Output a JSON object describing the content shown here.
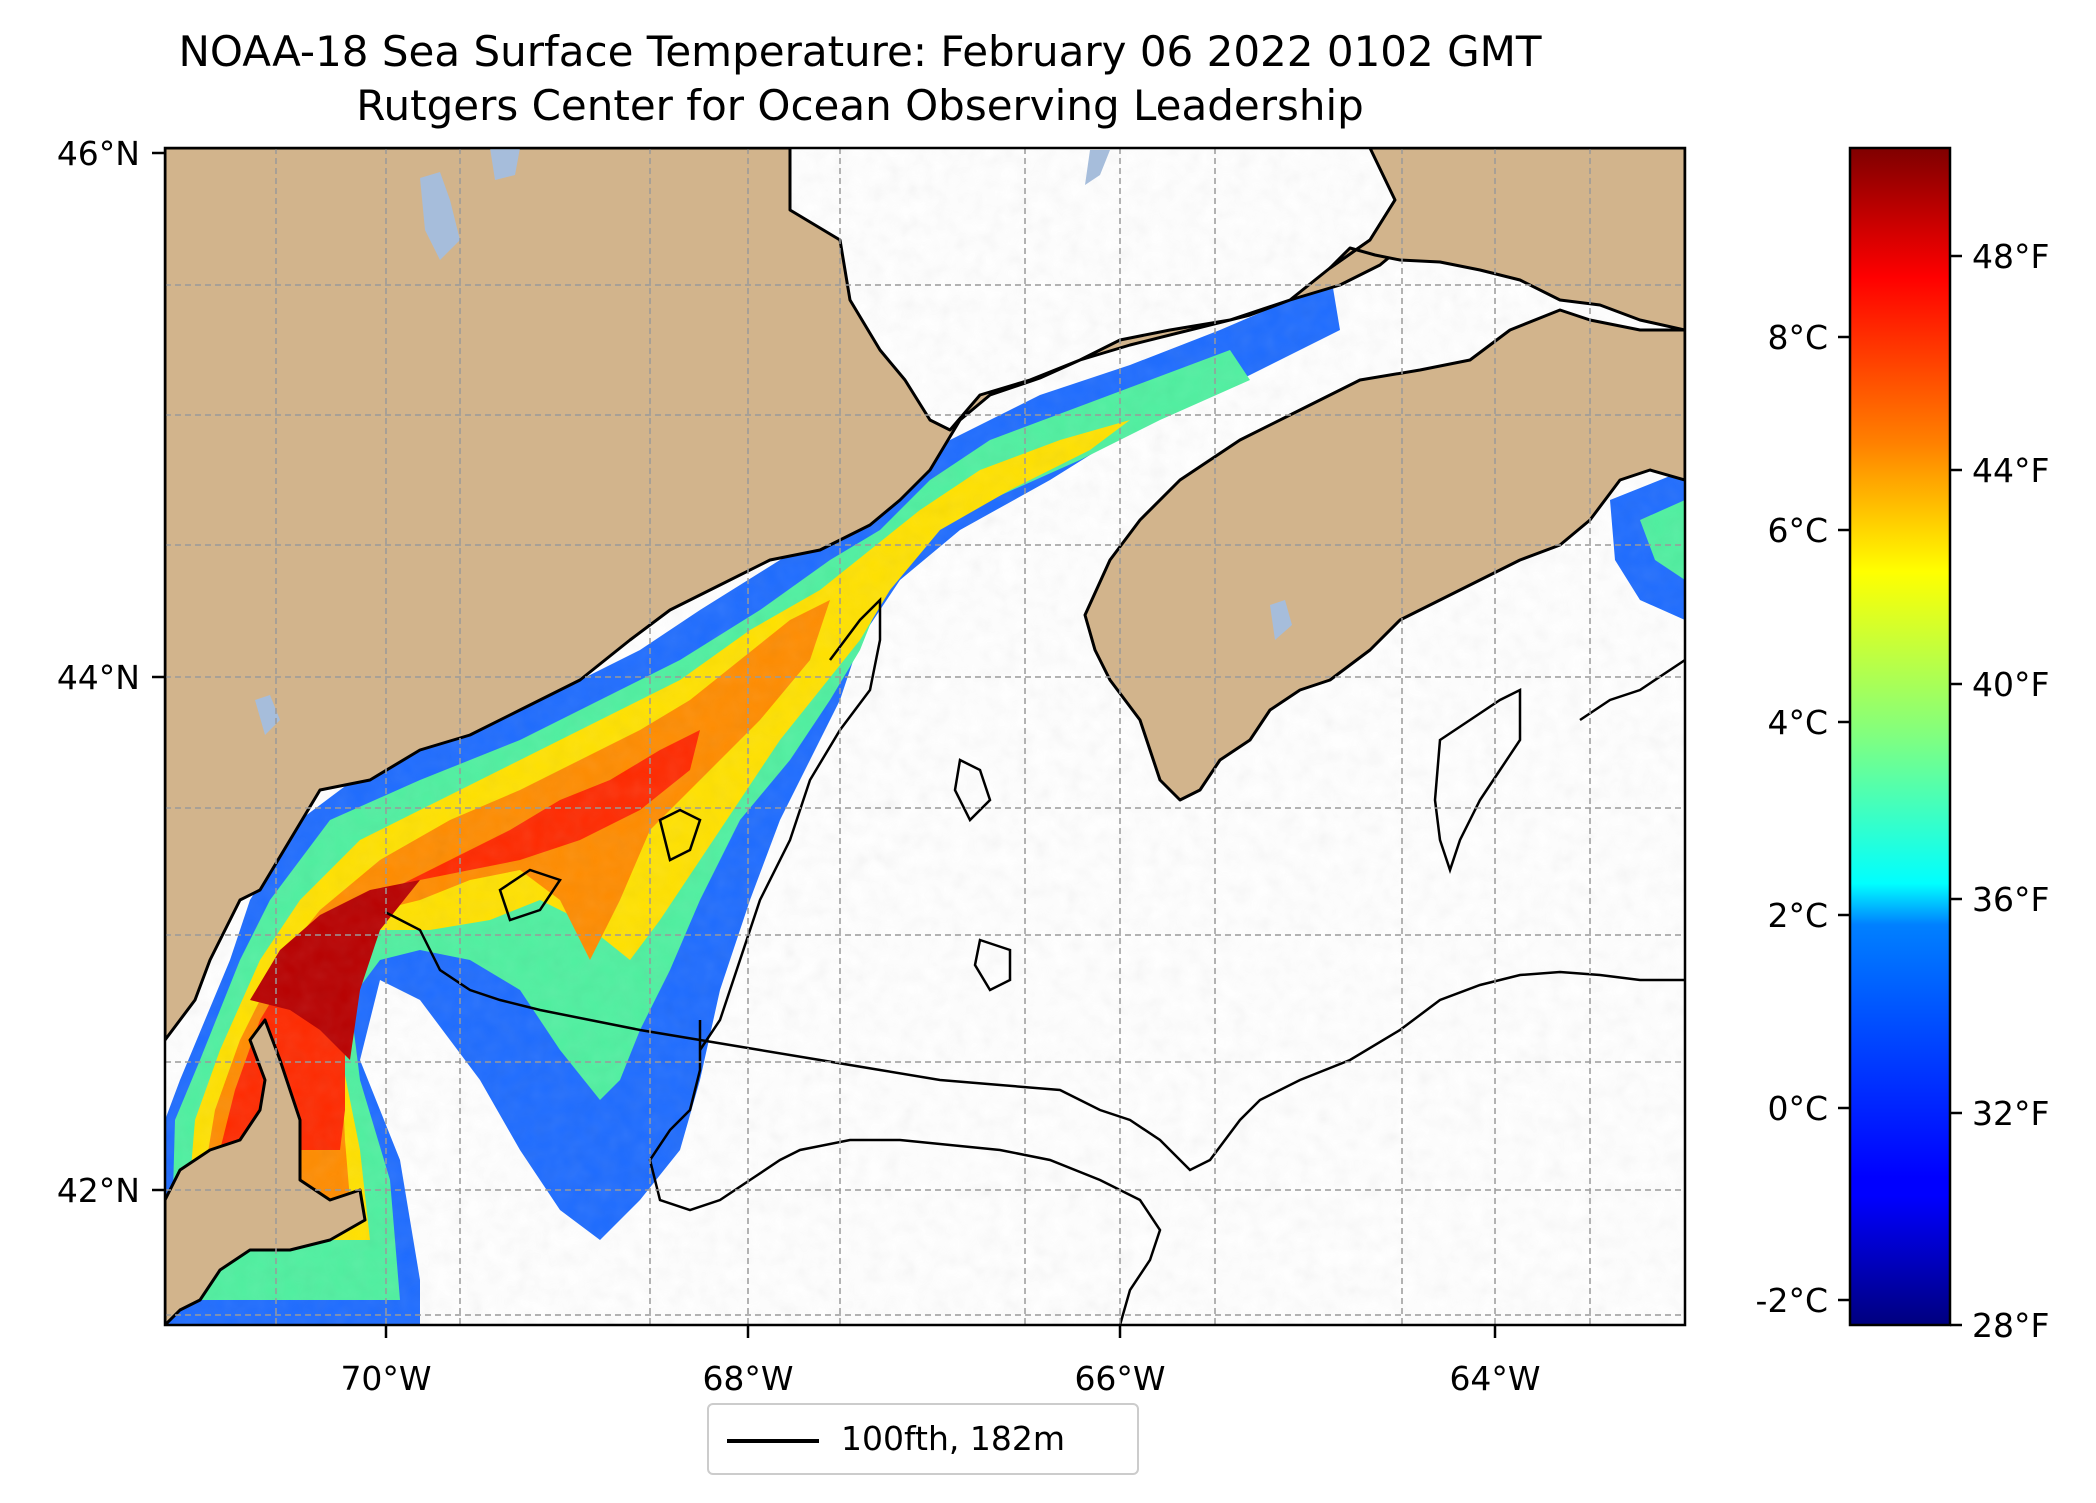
{
  "title": "NOAA-18 Sea Surface Temperature: February 06 2022 0102 GMT",
  "subtitle": "Rutgers Center for Ocean Observing Leadership",
  "map": {
    "lon_range": [
      -71.1,
      -62.9
    ],
    "lat_range": [
      41.5,
      46.0
    ],
    "lon_ticks": [
      "70°W",
      "68°W",
      "66°W",
      "64°W"
    ],
    "lat_ticks": [
      "46°N",
      "44°N",
      "42°N"
    ],
    "land_color": "#d2b48c",
    "lake_color": "#a6bddb",
    "gridlines": "dashed"
  },
  "colorbar": {
    "colormap": "jet",
    "range_c": [
      -2.2,
      9.9
    ],
    "celsius_ticks": [
      "8°C",
      "6°C",
      "4°C",
      "2°C",
      "0°C",
      "-2°C"
    ],
    "fahrenheit_ticks": [
      "48°F",
      "44°F",
      "40°F",
      "36°F",
      "32°F",
      "28°F"
    ]
  },
  "legend": {
    "label": "100fth, 182m",
    "placement": "bottom-center"
  }
}
